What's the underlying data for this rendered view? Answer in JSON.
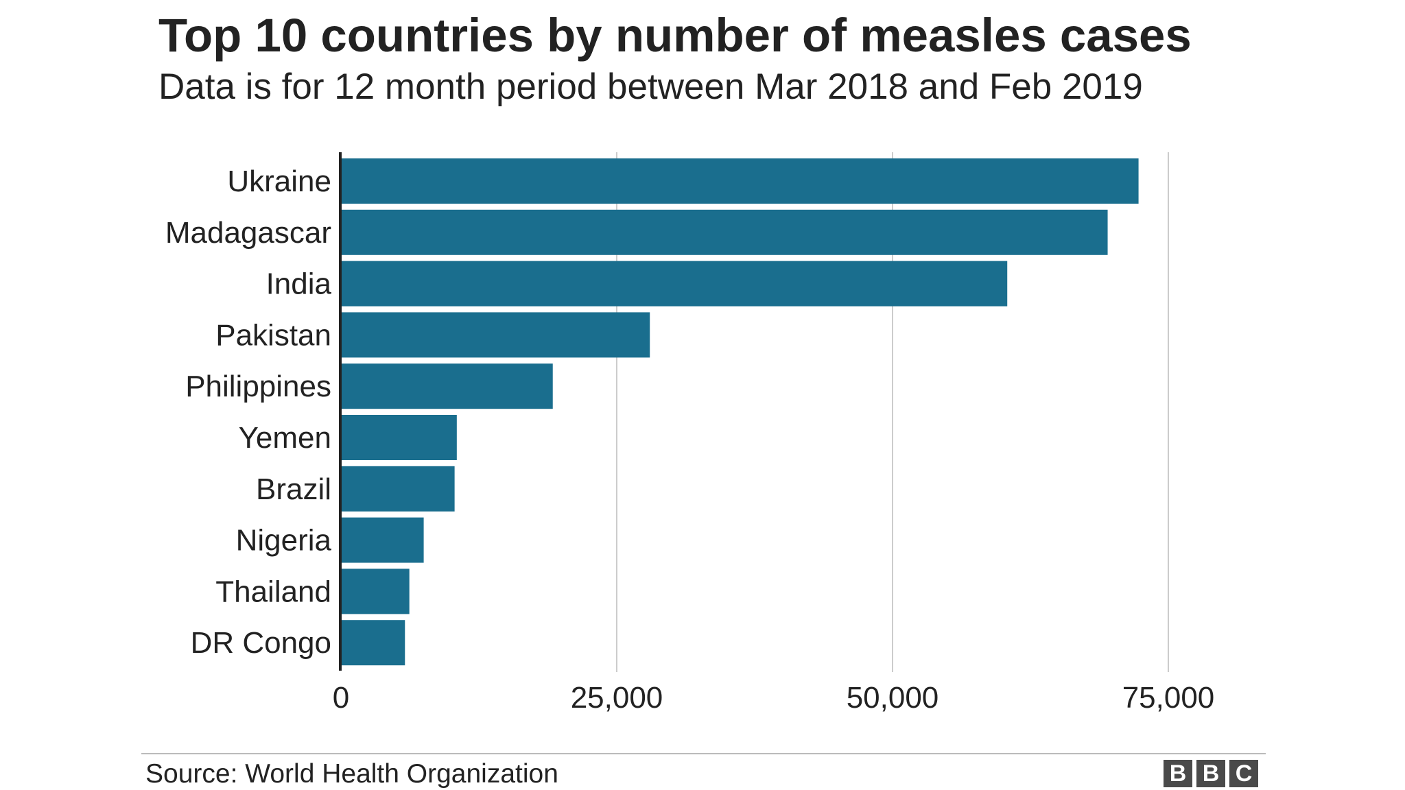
{
  "chart_data": {
    "type": "bar",
    "orientation": "horizontal",
    "title": "Top 10 countries by number of measles cases",
    "subtitle": "Data is for 12 month period between Mar 2018 and Feb 2019",
    "categories": [
      "Ukraine",
      "Madagascar",
      "India",
      "Pakistan",
      "Philippines",
      "Yemen",
      "Brazil",
      "Nigeria",
      "Thailand",
      "DR Congo"
    ],
    "values": [
      72300,
      69500,
      60400,
      28000,
      19200,
      10500,
      10300,
      7500,
      6200,
      5800
    ],
    "xlim": [
      0,
      80000
    ],
    "xticks": [
      0,
      25000,
      50000,
      75000
    ],
    "xtick_labels": [
      "0",
      "25,000",
      "50,000",
      "75,000"
    ],
    "xlabel": "",
    "ylabel": "",
    "grid": true,
    "bar_color": "#1a6e8e",
    "source": "Source: World Health Organization"
  },
  "branding": {
    "logo_letters": [
      "B",
      "B",
      "C"
    ]
  }
}
